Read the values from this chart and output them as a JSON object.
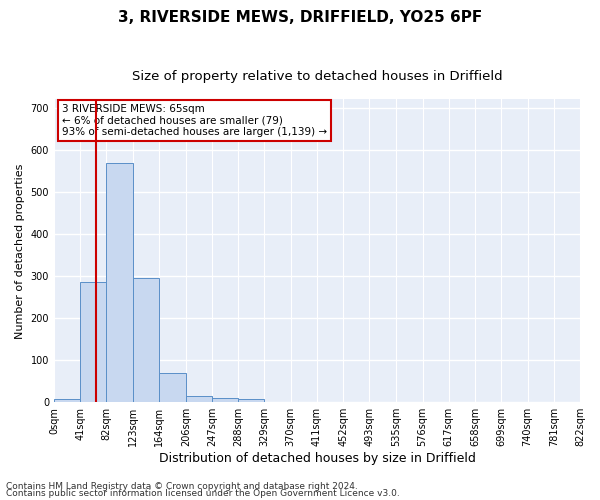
{
  "title1": "3, RIVERSIDE MEWS, DRIFFIELD, YO25 6PF",
  "title2": "Size of property relative to detached houses in Driffield",
  "xlabel": "Distribution of detached houses by size in Driffield",
  "ylabel": "Number of detached properties",
  "footer1": "Contains HM Land Registry data © Crown copyright and database right 2024.",
  "footer2": "Contains public sector information licensed under the Open Government Licence v3.0.",
  "bin_edges": [
    0,
    41,
    82,
    123,
    164,
    206,
    247,
    288,
    329,
    370,
    411,
    452,
    493,
    535,
    576,
    617,
    658,
    699,
    740,
    781,
    822
  ],
  "bar_heights": [
    8,
    285,
    570,
    295,
    70,
    15,
    10,
    7,
    0,
    0,
    0,
    0,
    0,
    0,
    0,
    0,
    0,
    0,
    0,
    0
  ],
  "bar_color": "#c8d8f0",
  "bar_edge_color": "#5a8fc8",
  "property_size": 65,
  "vline_color": "#cc0000",
  "annotation_text": "3 RIVERSIDE MEWS: 65sqm\n← 6% of detached houses are smaller (79)\n93% of semi-detached houses are larger (1,139) →",
  "annotation_box_color": "#ffffff",
  "annotation_box_edge": "#cc0000",
  "ylim": [
    0,
    720
  ],
  "yticks": [
    0,
    100,
    200,
    300,
    400,
    500,
    600,
    700
  ],
  "bg_color": "#e8eef8",
  "grid_color": "#ffffff",
  "fig_color": "#ffffff",
  "title1_fontsize": 11,
  "title2_fontsize": 9.5,
  "xlabel_fontsize": 9,
  "ylabel_fontsize": 8,
  "tick_fontsize": 7,
  "annot_fontsize": 7.5,
  "footer_fontsize": 6.5
}
